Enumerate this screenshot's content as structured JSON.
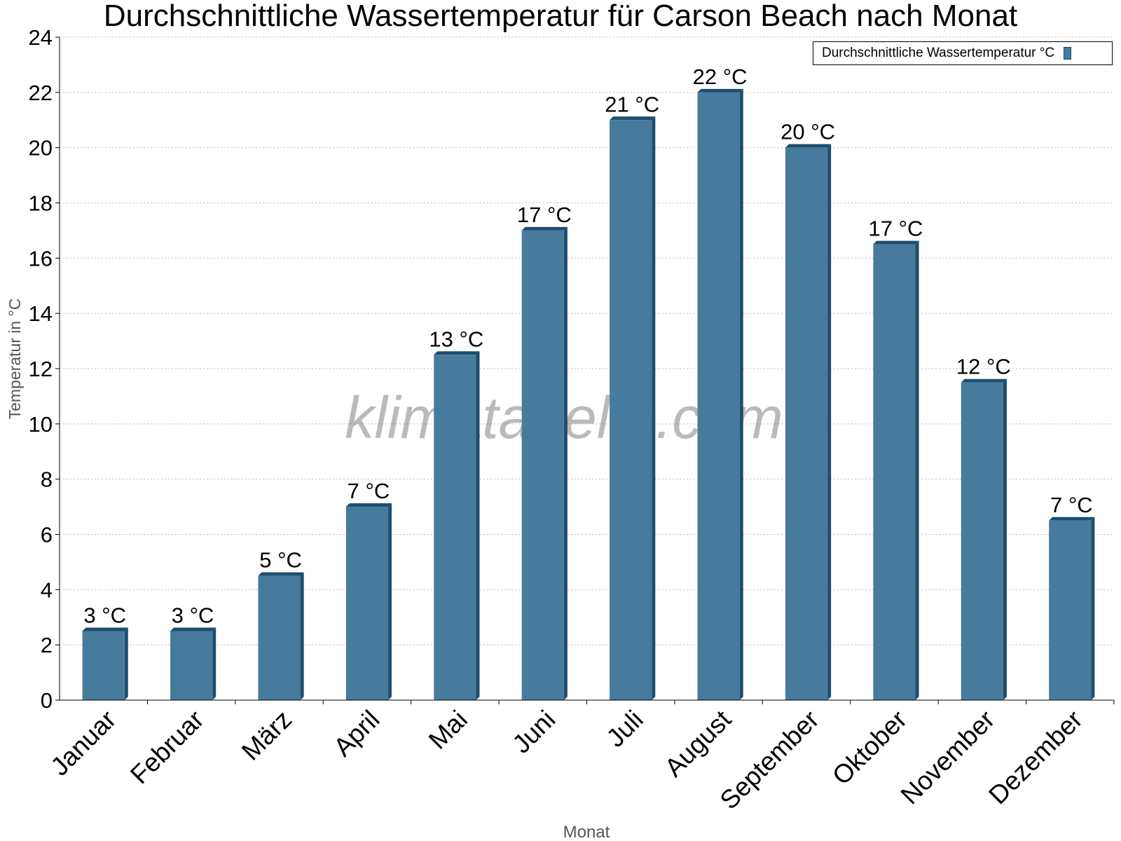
{
  "chart_data": {
    "type": "bar",
    "title": "Durchschnittliche Wassertemperatur für Carson Beach nach Monat",
    "xlabel": "Monat",
    "ylabel": "Temperatur in °C",
    "ylim": [
      0,
      24
    ],
    "yticks": [
      0,
      2,
      4,
      6,
      8,
      10,
      12,
      14,
      16,
      18,
      20,
      22,
      24
    ],
    "grid": "horizontal dotted",
    "legend_position": "top-right",
    "watermark": "klimatabelle.com",
    "categories": [
      "Januar",
      "Februar",
      "März",
      "April",
      "Mai",
      "Juni",
      "Juli",
      "August",
      "September",
      "Oktober",
      "November",
      "Dezember"
    ],
    "series": [
      {
        "name": "Durchschnittliche Wassertemperatur °C",
        "color": "#467b9e",
        "values": [
          2.5,
          2.5,
          4.5,
          7,
          12.5,
          17,
          21,
          22,
          20,
          16.5,
          11.5,
          6.5
        ],
        "labels": [
          "3 °C",
          "3 °C",
          "5 °C",
          "7 °C",
          "13 °C",
          "17 °C",
          "21 °C",
          "22 °C",
          "20 °C",
          "17 °C",
          "12 °C",
          "7 °C"
        ]
      }
    ]
  }
}
